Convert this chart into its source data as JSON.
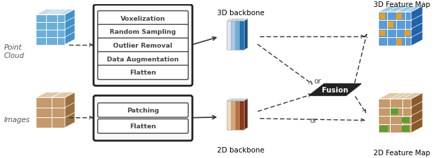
{
  "bg_color": "#ffffff",
  "point_cloud_label": "Point\nCloud",
  "images_label": "Images",
  "backbone_3d_label": "3D backbone",
  "backbone_2d_label": "2D backbone",
  "feature_map_3d_label": "3D Feature Map",
  "feature_map_2d_label": "2D Feature Map",
  "or_fusion_label": "or",
  "fusion_label": "Fusion",
  "or_2d_label": "or",
  "preprocessing_items": [
    "Voxelization",
    "Random Sampling",
    "Outlier Removal",
    "Data Augmentation",
    "Flatten"
  ],
  "img_preprocessing_items": [
    "Patching",
    "Flatten"
  ],
  "arrow_color": "#333333",
  "solid_arrow_color": "#222222",
  "preproc_bg": "#f8f8f8",
  "preproc_border": "#222222",
  "item_bg": "#ffffff",
  "item_border": "#555555",
  "text_color": "#444444",
  "fusion_fill": "#222222",
  "fusion_text": "#ffffff"
}
